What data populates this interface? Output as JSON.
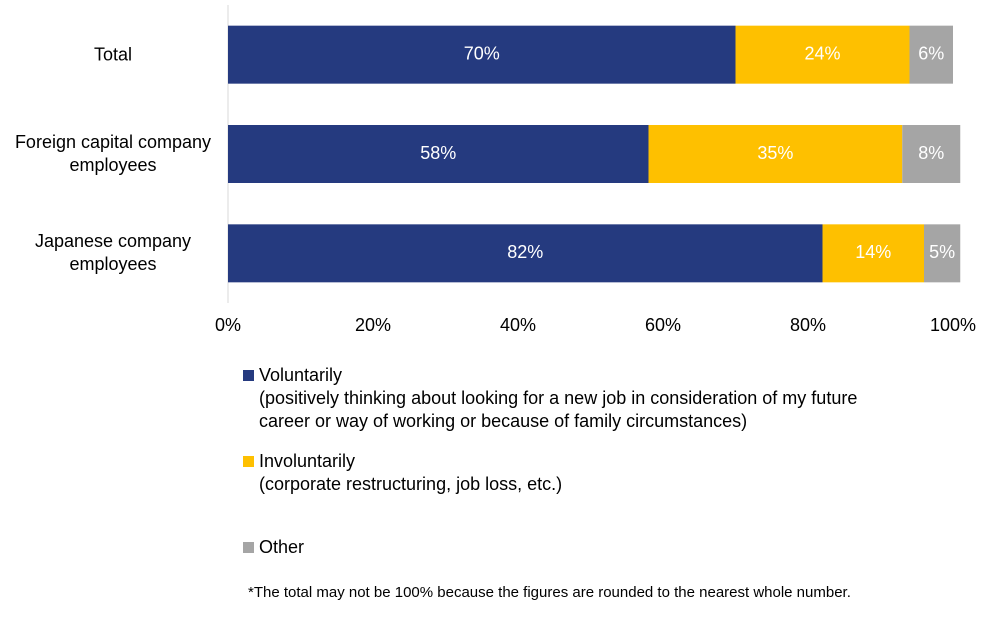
{
  "chart_data": {
    "type": "stacked-bar-horizontal",
    "categories": [
      "Total",
      "Foreign capital company employees",
      "Japanese company employees"
    ],
    "series": [
      {
        "name": "Voluntarily\n(positively thinking about looking for a new job in consideration of my future\ncareer or way of working or because of family circumstances)",
        "color": "#253a7f",
        "values": [
          70,
          58,
          82
        ],
        "value_labels": [
          "70%",
          "58%",
          "82%"
        ]
      },
      {
        "name": "Involuntarily\n (corporate restructuring, job loss, etc.)",
        "color": "#fec000",
        "values": [
          24,
          35,
          14
        ],
        "value_labels": [
          "24%",
          "35%",
          "14%"
        ]
      },
      {
        "name": "Other",
        "color": "#a5a5a5",
        "values": [
          6,
          8,
          5
        ],
        "value_labels": [
          "6%",
          "8%",
          "5%"
        ]
      }
    ],
    "xlim": [
      0,
      100
    ],
    "xticks": [
      {
        "value": 0,
        "label": "0%"
      },
      {
        "value": 20,
        "label": "20%"
      },
      {
        "value": 40,
        "label": "40%"
      },
      {
        "value": 60,
        "label": "60%"
      },
      {
        "value": 80,
        "label": "80%"
      },
      {
        "value": 100,
        "label": "100%"
      }
    ],
    "footnote": "*The total may not be 100% because the figures are rounded to the nearest whole number."
  }
}
